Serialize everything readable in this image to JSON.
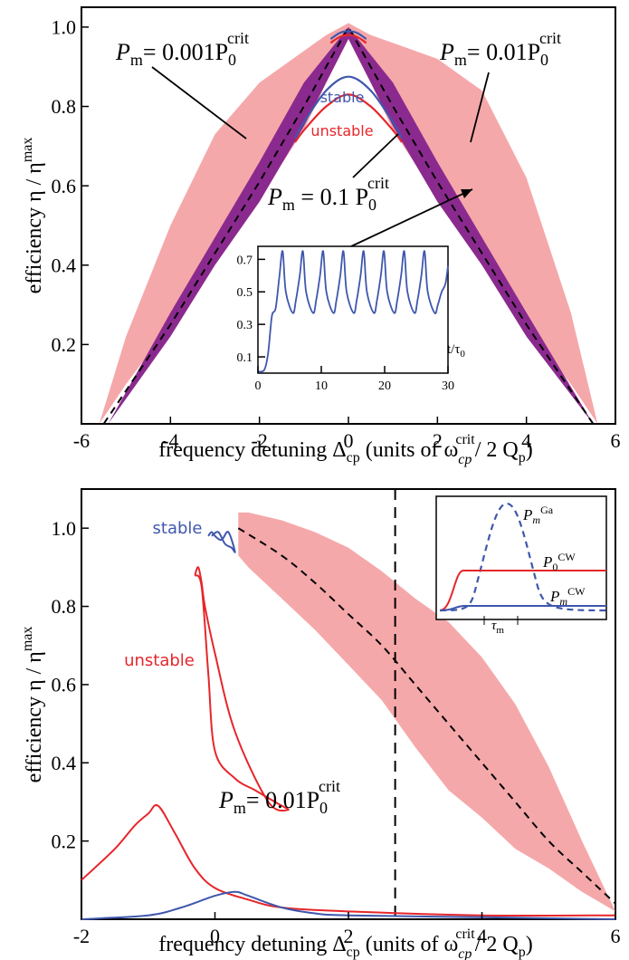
{
  "colors": {
    "band_outer": "#f5a8aa",
    "band_inner": "#8b2a8e",
    "stable": "#3f57ad",
    "unstable": "#e6262b",
    "dashed": "#000000"
  },
  "chart_data": [
    {
      "type": "area",
      "xlim": [
        -6,
        6
      ],
      "ylim": [
        0,
        1.05
      ],
      "xticks": [
        -6,
        -4,
        -2,
        0,
        2,
        4,
        6
      ],
      "xtick_labels": [
        "-6",
        "-4",
        "-2",
        "0",
        "2",
        "4",
        "6"
      ],
      "yticks": [
        0.2,
        0.4,
        0.6,
        0.8,
        1.0
      ],
      "ytick_labels": [
        "0.2",
        "0.4",
        "0.6",
        "0.8",
        "1.0"
      ],
      "xlabel": {
        "main": "frequency detuning Δ",
        "sub": "cp",
        "rest1": " (units of  ω",
        "sup": "crit",
        "sub2": "cp",
        "rest2": "/ 2 Q",
        "sub3": "p",
        "rest3": ")"
      },
      "ylabel": {
        "main": "efficiency η / η",
        "sup": "max"
      },
      "annotations": [
        {
          "text": "P",
          "sub": "m",
          "eq": "= 0.001P",
          "sub2": "0",
          "sup": "crit"
        },
        {
          "text": "P",
          "sub": "m",
          "eq": "= 0.01P",
          "sub2": "0",
          "sup": "crit"
        },
        {
          "text": "P",
          "sub": "m",
          "eq": " = 0.1 P",
          "sub2": "0",
          "sup": "crit"
        }
      ],
      "labels": {
        "stable": "stable",
        "unstable": "unstable"
      },
      "series": [
        {
          "name": "P_m = 0.01 P_0^crit (band)",
          "x": [
            -5.6,
            -5.0,
            -4.0,
            -3.0,
            -2.0,
            -1.0,
            -0.5,
            0,
            0.5,
            1.0,
            2.0,
            3.0,
            4.0,
            5.0,
            5.6
          ],
          "y_lower": [
            0,
            0.1,
            0.25,
            0.42,
            0.57,
            0.74,
            0.86,
            0.97,
            0.86,
            0.74,
            0.57,
            0.42,
            0.25,
            0.1,
            0
          ],
          "y_upper": [
            0,
            0.22,
            0.5,
            0.73,
            0.86,
            0.94,
            0.98,
            1.01,
            0.98,
            0.96,
            0.92,
            0.84,
            0.62,
            0.28,
            0
          ]
        },
        {
          "name": "P_m = 0.001 P_0^crit (band)",
          "x": [
            -5.4,
            -4.0,
            -3.0,
            -2.0,
            -1.0,
            0,
            1.0,
            2.0,
            3.0,
            4.0,
            5.5
          ],
          "y_lower": [
            0,
            0.22,
            0.4,
            0.56,
            0.75,
            0.97,
            0.75,
            0.56,
            0.4,
            0.22,
            0
          ],
          "y_upper": [
            0,
            0.28,
            0.47,
            0.66,
            0.86,
            1.0,
            0.86,
            0.66,
            0.47,
            0.28,
            0
          ]
        },
        {
          "name": "optimum (dashed)",
          "x": [
            -5.5,
            -4.0,
            -3.0,
            -2.0,
            -1.0,
            0,
            1.0,
            2.0,
            3.0,
            4.0,
            5.5
          ],
          "y": [
            0,
            0.25,
            0.43,
            0.61,
            0.8,
            1.0,
            0.8,
            0.61,
            0.43,
            0.25,
            0
          ]
        },
        {
          "name": "stable",
          "x": [
            -1.2,
            -1.0,
            -0.5,
            0,
            0.5,
            1.0,
            1.2
          ],
          "y": [
            0.72,
            0.76,
            0.84,
            0.875,
            0.84,
            0.76,
            0.72
          ]
        },
        {
          "name": "unstable",
          "x": [
            -1.2,
            -1.0,
            -0.5,
            0,
            0.5,
            1.0,
            1.2
          ],
          "y": [
            0.71,
            0.74,
            0.8,
            0.83,
            0.8,
            0.74,
            0.71
          ]
        },
        {
          "name": "peak stable",
          "x": [
            -0.4,
            -0.2,
            0,
            0.2,
            0.4
          ],
          "y": [
            0.97,
            0.985,
            0.99,
            0.985,
            0.97
          ]
        },
        {
          "name": "peak unstable",
          "x": [
            -0.4,
            -0.2,
            0,
            0.2,
            0.4
          ],
          "y": [
            0.96,
            0.975,
            0.98,
            0.975,
            0.96
          ]
        }
      ],
      "inset": {
        "xlim": [
          0,
          30
        ],
        "ylim": [
          0,
          0.78
        ],
        "xticks": [
          0,
          10,
          20,
          30
        ],
        "xtick_labels": [
          "0",
          "10",
          "20",
          "30"
        ],
        "yticks": [
          0.1,
          0.3,
          0.5,
          0.7
        ],
        "ytick_labels": [
          "0.1",
          "0.3",
          "0.5",
          "0.7"
        ],
        "xlabel": {
          "main": "t/τ",
          "sub": "0"
        },
        "series": [
          {
            "name": "time trace",
            "x": [
              0,
              1.0,
              1.6,
              2.2,
              2.8,
              3.4,
              3.9,
              4.4,
              5.5,
              6.0,
              6.6,
              7.1,
              7.6,
              8.7,
              9.2,
              9.8,
              10.3,
              10.8,
              11.9,
              12.4,
              13.0,
              13.5,
              14.0,
              15.1,
              15.6,
              16.2,
              16.7,
              17.2,
              18.3,
              18.8,
              19.4,
              19.9,
              20.4,
              21.5,
              22.0,
              22.6,
              23.1,
              23.6,
              24.7,
              25.2,
              25.8,
              26.3,
              26.8,
              27.9,
              28.4,
              29.0,
              29.6,
              30
            ],
            "y": [
              0.01,
              0.02,
              0.12,
              0.35,
              0.4,
              0.6,
              0.75,
              0.5,
              0.37,
              0.45,
              0.6,
              0.75,
              0.5,
              0.37,
              0.45,
              0.6,
              0.75,
              0.5,
              0.37,
              0.45,
              0.6,
              0.75,
              0.5,
              0.37,
              0.45,
              0.6,
              0.75,
              0.5,
              0.37,
              0.45,
              0.6,
              0.75,
              0.5,
              0.37,
              0.45,
              0.6,
              0.75,
              0.5,
              0.37,
              0.45,
              0.6,
              0.75,
              0.5,
              0.37,
              0.42,
              0.5,
              0.55,
              0.66
            ]
          }
        ]
      }
    },
    {
      "type": "area",
      "xlim": [
        -2,
        6
      ],
      "ylim": [
        0,
        1.1
      ],
      "xticks": [
        -2,
        0,
        2,
        4,
        6
      ],
      "xtick_labels": [
        "-2",
        "0",
        "2",
        "4",
        "6"
      ],
      "yticks": [
        0.2,
        0.4,
        0.6,
        0.8,
        1.0
      ],
      "ytick_labels": [
        "0.2",
        "0.4",
        "0.6",
        "0.8",
        "1.0"
      ],
      "xlabel": {
        "main": "frequency detuning Δ",
        "sub": "cp",
        "rest1": " (units of  ω",
        "sup": "crit",
        "sub2": "cp",
        "rest2": "/ 2 Q",
        "sub3": "p",
        "rest3": ")"
      },
      "ylabel": {
        "main": "efficiency η / η",
        "sup": "max"
      },
      "annotations": [
        {
          "text": "P",
          "sub": "m",
          "eq": "= 0.01P",
          "sub2": "0",
          "sup": "crit"
        }
      ],
      "labels": {
        "stable": "stable",
        "unstable": "unstable"
      },
      "vline_x": 2.7,
      "series": [
        {
          "name": "band",
          "x": [
            0.35,
            0.5,
            1.0,
            1.5,
            2.0,
            2.5,
            3.0,
            3.5,
            4.0,
            4.5,
            5.0,
            5.5,
            6.0
          ],
          "y_lower": [
            0.93,
            0.9,
            0.82,
            0.74,
            0.65,
            0.56,
            0.44,
            0.33,
            0.26,
            0.18,
            0.13,
            0.07,
            0.02
          ],
          "y_upper": [
            1.04,
            1.04,
            1.02,
            0.99,
            0.95,
            0.89,
            0.82,
            0.76,
            0.67,
            0.55,
            0.39,
            0.2,
            0.02
          ]
        },
        {
          "name": "optimum (dashed)",
          "x": [
            0.35,
            1.0,
            1.5,
            2.0,
            2.5,
            3.0,
            3.5,
            4.0,
            4.5,
            5.0,
            5.5,
            6.0
          ],
          "y": [
            1.0,
            0.93,
            0.86,
            0.78,
            0.7,
            0.6,
            0.5,
            0.4,
            0.3,
            0.2,
            0.12,
            0.04
          ]
        },
        {
          "name": "stable loop",
          "x": [
            -0.1,
            -0.05,
            0.0,
            0.1,
            0.2,
            0.3,
            0.25,
            0.15,
            0.05,
            -0.05
          ],
          "y": [
            0.98,
            0.99,
            0.98,
            0.97,
            0.99,
            0.94,
            0.95,
            0.96,
            0.99,
            0.98
          ]
        },
        {
          "name": "unstable loop",
          "x": [
            -0.3,
            -0.25,
            -0.2,
            -0.15,
            0.0,
            0.3,
            0.8,
            1.1,
            0.9,
            0.6,
            0.3,
            0.0,
            -0.1,
            -0.2,
            -0.3
          ],
          "y": [
            0.88,
            0.9,
            0.86,
            0.8,
            0.68,
            0.48,
            0.3,
            0.28,
            0.3,
            0.33,
            0.36,
            0.43,
            0.63,
            0.85,
            0.88
          ]
        },
        {
          "name": "unstable (low)",
          "x": [
            -2.0,
            -1.5,
            -1.2,
            -1.0,
            -0.85,
            -0.6,
            -0.3,
            0.0,
            0.5,
            1.0,
            2.0,
            4.0,
            6.0
          ],
          "y": [
            0.1,
            0.18,
            0.24,
            0.27,
            0.29,
            0.22,
            0.13,
            0.08,
            0.05,
            0.03,
            0.02,
            0.01,
            0.01
          ]
        },
        {
          "name": "stable (low)",
          "x": [
            -2.0,
            -1.0,
            -0.5,
            0.0,
            0.3,
            0.5,
            1.0,
            1.5,
            2.0,
            4.0,
            6.0
          ],
          "y": [
            0.0,
            0.01,
            0.03,
            0.06,
            0.07,
            0.06,
            0.03,
            0.015,
            0.01,
            0.005,
            0.0
          ]
        }
      ],
      "inset": {
        "legend": [
          {
            "text": "P",
            "sub": "m",
            "sup": "Ga"
          },
          {
            "text": "P",
            "sub": "0",
            "sup": "CW"
          },
          {
            "text": "P",
            "sub": "m",
            "sup": "CW"
          }
        ],
        "xlabel": {
          "main": "τ",
          "sub": "m"
        }
      }
    }
  ]
}
